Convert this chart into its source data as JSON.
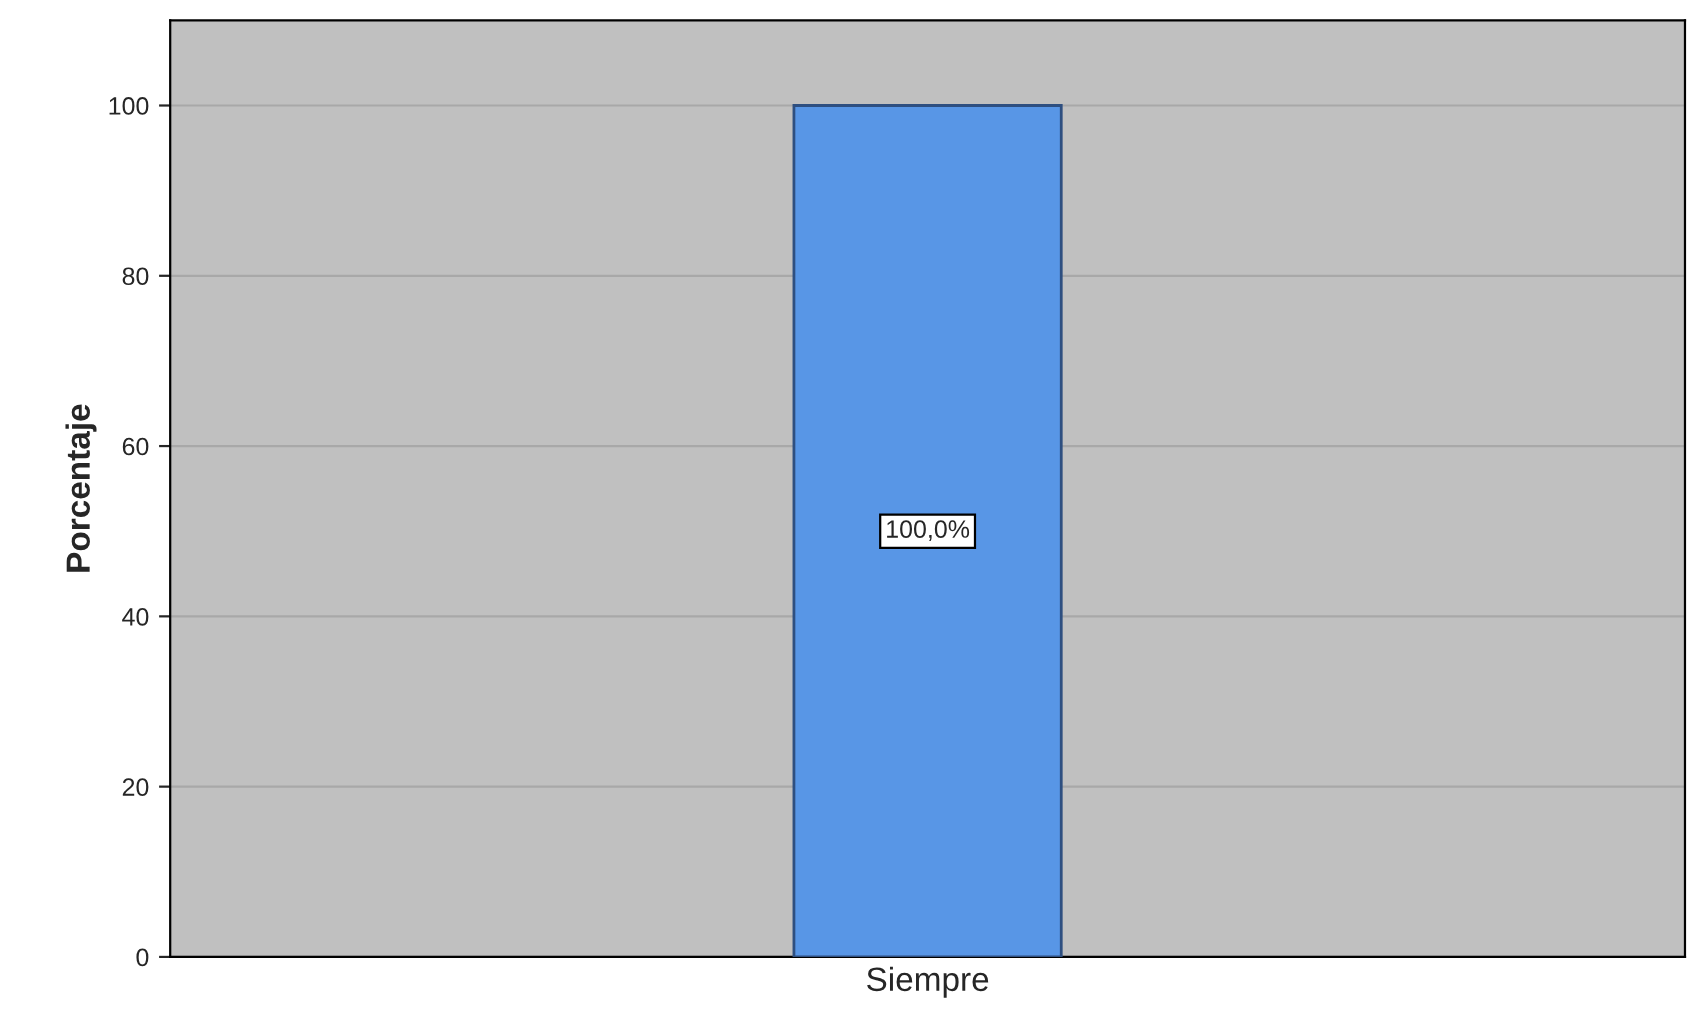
{
  "chart_data": {
    "type": "bar",
    "ylabel": "Porcentaje",
    "categories": [
      "Siempre"
    ],
    "values": [
      100
    ],
    "value_labels": [
      "100,0%"
    ],
    "color": "#5896e6",
    "ylim": [
      0,
      110
    ],
    "yticks": [
      0,
      20,
      40,
      60,
      80,
      100
    ],
    "grid": "y"
  }
}
